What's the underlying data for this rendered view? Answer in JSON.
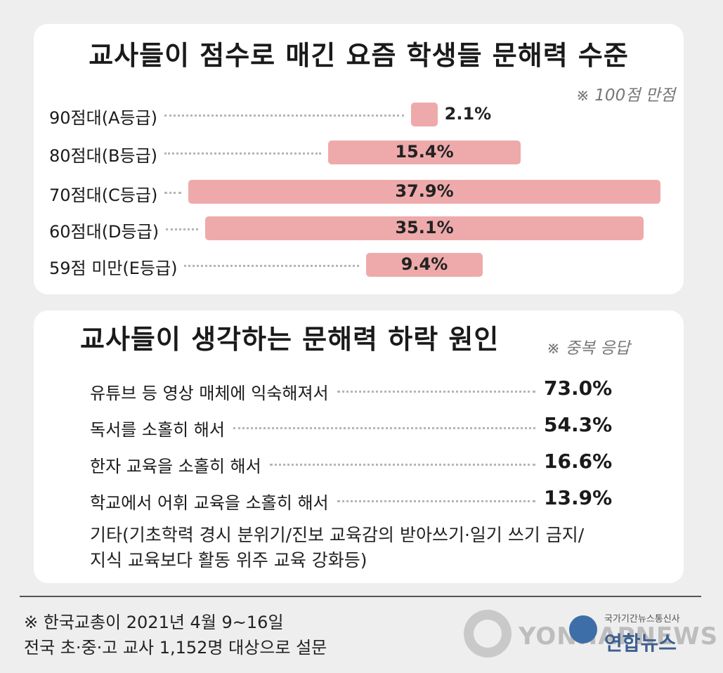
{
  "chart_data": [
    {
      "type": "bar",
      "title": "교사들이 점수로 매긴 요즘 학생들 문해력 수준",
      "note": "※ 100점 만점",
      "categories": [
        "90점대(A등급)",
        "80점대(B등급)",
        "70점대(C등급)",
        "60점대(D등급)",
        "59점 미만(E등급)"
      ],
      "values": [
        2.1,
        15.4,
        37.9,
        35.1,
        9.4
      ],
      "value_labels": [
        "2.1%",
        "15.4%",
        "37.9%",
        "35.1%",
        "9.4%"
      ],
      "colors": {
        "bar": "#eeaaab"
      }
    },
    {
      "type": "table",
      "title": "교사들이 생각하는 문해력 하락 원인",
      "note": "※ 중복 응답",
      "rows": [
        {
          "label": "유튜브 등 영상 매체에 익숙해져서",
          "value": 73.0,
          "value_text": "73.0%"
        },
        {
          "label": "독서를 소홀히 해서",
          "value": 54.3,
          "value_text": "54.3%"
        },
        {
          "label": "한자 교육을 소홀히 해서",
          "value": 16.6,
          "value_text": "16.6%"
        },
        {
          "label": "학교에서 어휘 교육을 소홀히 해서",
          "value": 13.9,
          "value_text": "13.9%"
        }
      ],
      "other_line1": "기타(기초학력 경시 분위기/진보 교육감의 받아쓰기·일기 쓰기 금지/",
      "other_line2": "지식 교육보다 활동 위주 교육 강화등)"
    }
  ],
  "footer": {
    "source_line1": "※ 한국교총이 2021년 4월 9~16일",
    "source_line2": "전국 초·중·고 교사 1,152명 대상으로 설문",
    "logo_word": "YONHAPNEWS",
    "logo_sub": "국가기간뉴스통신사",
    "logo_kor": "연합뉴스"
  }
}
